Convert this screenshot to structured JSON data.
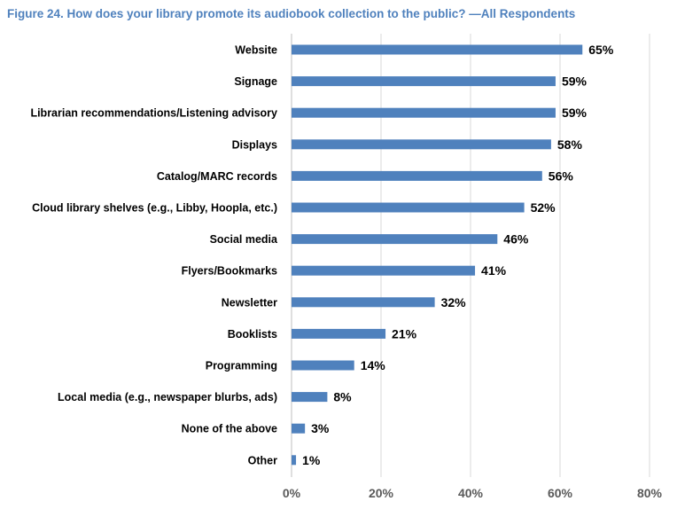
{
  "chart_data": {
    "type": "bar",
    "orientation": "horizontal",
    "title": "Figure 24. How does your library promote its audiobook collection to the public? —All Respondents",
    "categories": [
      "Website",
      "Signage",
      "Librarian recommendations/Listening advisory",
      "Displays",
      "Catalog/MARC records",
      "Cloud library shelves (e.g., Libby, Hoopla, etc.)",
      "Social media",
      "Flyers/Bookmarks",
      "Newsletter",
      "Booklists",
      "Programming",
      "Local media (e.g., newspaper blurbs, ads)",
      "None of the above",
      "Other"
    ],
    "values": [
      65,
      59,
      59,
      58,
      56,
      52,
      46,
      41,
      32,
      21,
      14,
      8,
      3,
      1
    ],
    "value_suffix": "%",
    "xlim": [
      0,
      80
    ],
    "xticks": [
      0,
      20,
      40,
      60,
      80
    ],
    "xtick_labels": [
      "0%",
      "20%",
      "40%",
      "60%",
      "80%"
    ],
    "grid": "vertical",
    "bar_color": "#4f81bd",
    "grid_color": "#d9d9d9",
    "title_color": "#4f81bd"
  }
}
